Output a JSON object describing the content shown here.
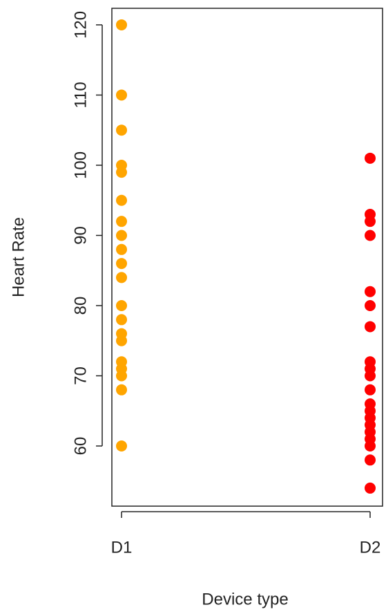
{
  "chart_data": {
    "type": "strip",
    "x_label": "Device type",
    "y_label": "Heart Rate",
    "categories": [
      "D1",
      "D2"
    ],
    "series": [
      {
        "color": "#ffa500",
        "values": [
          120,
          110,
          105,
          100,
          99,
          95,
          92,
          90,
          88,
          86,
          84,
          80,
          78,
          76,
          75,
          72,
          71,
          70,
          68,
          60
        ]
      },
      {
        "color": "#ff0000",
        "values": [
          101,
          93,
          92,
          90,
          82,
          80,
          77,
          72,
          71,
          70,
          68,
          66,
          65,
          64,
          63,
          62,
          61,
          60,
          58,
          54
        ]
      }
    ],
    "ylim": [
      51.43,
      122.36
    ],
    "yticks": [
      60,
      70,
      80,
      90,
      100,
      110,
      120
    ]
  }
}
